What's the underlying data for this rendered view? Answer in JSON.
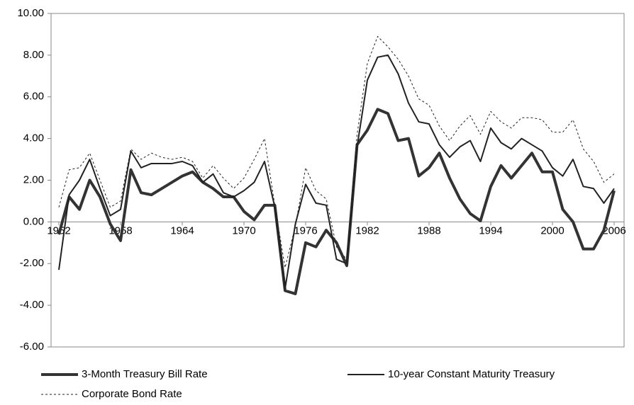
{
  "chart_data": {
    "type": "line",
    "x": [
      1952,
      1953,
      1954,
      1955,
      1956,
      1957,
      1958,
      1959,
      1960,
      1961,
      1962,
      1963,
      1964,
      1965,
      1966,
      1967,
      1968,
      1969,
      1970,
      1971,
      1972,
      1973,
      1974,
      1975,
      1976,
      1977,
      1978,
      1979,
      1980,
      1981,
      1982,
      1983,
      1984,
      1985,
      1986,
      1987,
      1988,
      1989,
      1990,
      1991,
      1992,
      1993,
      1994,
      1995,
      1996,
      1997,
      1998,
      1999,
      2000,
      2001,
      2002,
      2003,
      2004,
      2005,
      2006
    ],
    "series": [
      {
        "name": "3-Month Treasury Bill Rate",
        "color": "#333333",
        "line_width": 4,
        "dashed": false,
        "values": [
          -0.6,
          1.2,
          0.6,
          2.0,
          1.2,
          -0.1,
          -0.9,
          2.5,
          1.4,
          1.3,
          1.6,
          1.9,
          2.2,
          2.4,
          1.9,
          1.6,
          1.2,
          1.2,
          0.5,
          0.1,
          0.8,
          0.8,
          -3.3,
          -3.45,
          -1.0,
          -1.2,
          -0.4,
          -1.0,
          -2.1,
          3.7,
          4.4,
          5.4,
          5.2,
          3.9,
          4.0,
          2.2,
          2.6,
          3.3,
          2.1,
          1.1,
          0.4,
          0.05,
          1.7,
          2.7,
          2.1,
          2.7,
          3.3,
          2.4,
          2.4,
          0.6,
          0.0,
          -1.3,
          -1.3,
          -0.4,
          1.5
        ]
      },
      {
        "name": "10-year Constant Maturity Treasury",
        "color": "#222222",
        "line_width": 2,
        "dashed": false,
        "values": [
          -2.3,
          1.3,
          2.0,
          3.0,
          1.6,
          0.3,
          0.6,
          3.4,
          2.6,
          2.8,
          2.8,
          2.8,
          2.9,
          2.7,
          1.9,
          2.3,
          1.4,
          1.2,
          1.5,
          1.9,
          2.9,
          0.7,
          -3.2,
          -0.1,
          1.8,
          0.9,
          0.8,
          -1.8,
          -2.0,
          3.6,
          6.8,
          7.9,
          8.0,
          7.1,
          5.7,
          4.8,
          4.7,
          3.7,
          3.1,
          3.6,
          3.9,
          2.9,
          4.5,
          3.8,
          3.5,
          4.0,
          3.7,
          3.4,
          2.6,
          2.2,
          3.0,
          1.7,
          1.6,
          0.9,
          1.6
        ]
      },
      {
        "name": "Corporate Bond Rate",
        "color": "#222222",
        "line_width": 1,
        "dashed": true,
        "values": [
          0.7,
          2.5,
          2.6,
          3.3,
          2.0,
          0.7,
          1.0,
          3.5,
          3.0,
          3.3,
          3.1,
          3.0,
          3.1,
          2.9,
          2.1,
          2.7,
          2.1,
          1.6,
          2.1,
          3.0,
          4.0,
          0.8,
          -2.2,
          -0.2,
          2.6,
          1.5,
          1.1,
          -1.2,
          -1.8,
          4.2,
          7.6,
          8.9,
          8.4,
          7.8,
          7.0,
          5.9,
          5.6,
          4.6,
          3.9,
          4.6,
          5.1,
          4.2,
          5.3,
          4.8,
          4.5,
          5.0,
          5.0,
          4.9,
          4.3,
          4.3,
          4.9,
          3.5,
          2.9,
          1.9,
          2.3
        ]
      }
    ],
    "xlim": [
      1952,
      2006
    ],
    "xticks": [
      1952,
      1958,
      1964,
      1970,
      1976,
      1982,
      1988,
      1994,
      2000,
      2006
    ],
    "ylim": [
      -6,
      10
    ],
    "yticks": [
      {
        "value": -6,
        "label": "-6.00"
      },
      {
        "value": -4,
        "label": "-4.00"
      },
      {
        "value": -2,
        "label": "-2.00"
      },
      {
        "value": 0,
        "label": "0.00"
      },
      {
        "value": 2,
        "label": "2.00"
      },
      {
        "value": 4,
        "label": "4.00"
      },
      {
        "value": 6,
        "label": "6.00"
      },
      {
        "value": 8,
        "label": "8.00"
      },
      {
        "value": 10,
        "label": "10.00"
      }
    ],
    "grid": false,
    "legend": "bottom"
  }
}
